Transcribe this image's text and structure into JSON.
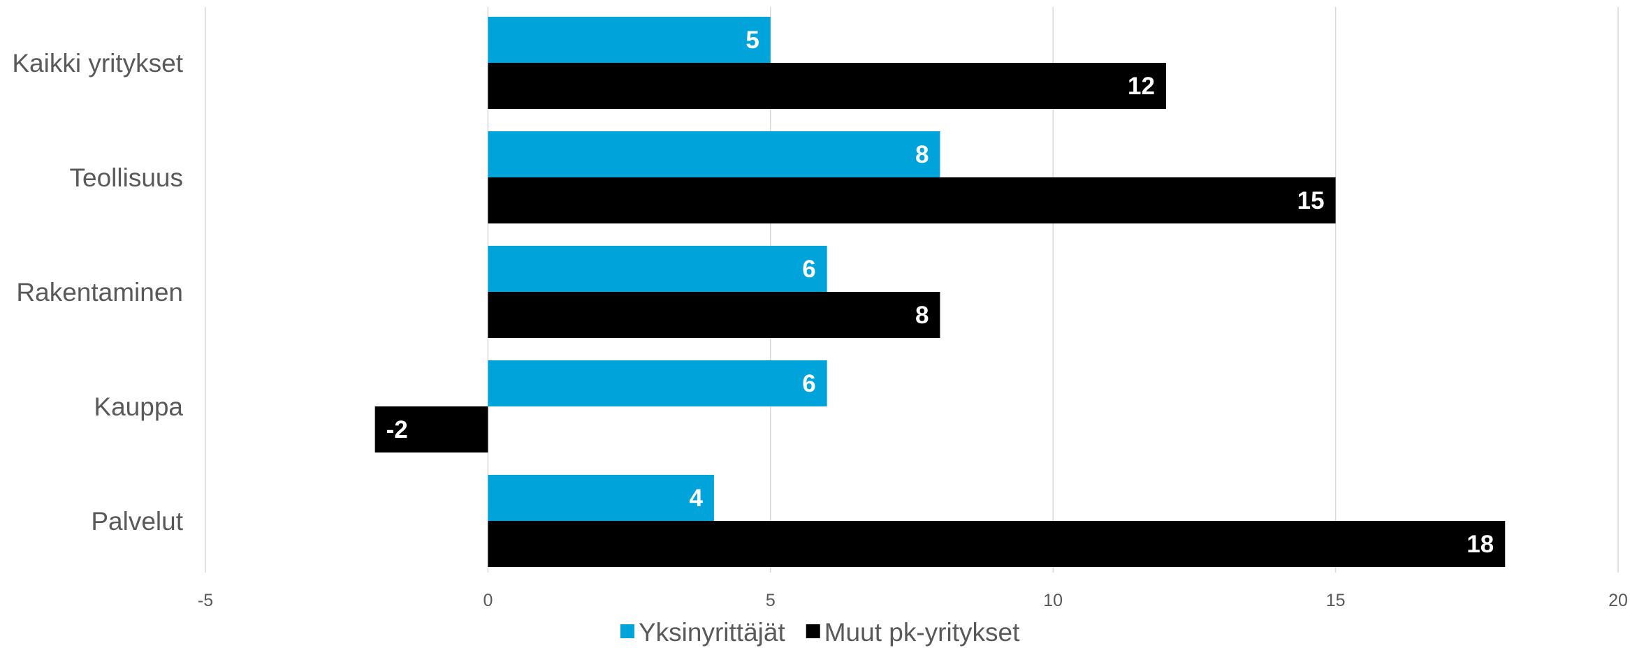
{
  "chart_data": {
    "type": "bar",
    "orientation": "horizontal",
    "categories": [
      "Kaikki yritykset",
      "Teollisuus",
      "Rakentaminen",
      "Kauppa",
      "Palvelut"
    ],
    "series": [
      {
        "name": "Yksinyrittäjät",
        "color": "#00A3DA",
        "values": [
          5,
          8,
          6,
          6,
          4
        ]
      },
      {
        "name": "Muut pk-yritykset",
        "color": "#000000",
        "values": [
          12,
          15,
          8,
          -2,
          18
        ]
      }
    ],
    "xlim": [
      -5,
      20
    ],
    "x_ticks": [
      "-5",
      "0",
      "5",
      "10",
      "15",
      "20"
    ],
    "grid": true,
    "grid_color": "#D9D9D9",
    "legend_position": "bottom",
    "data_labels": true,
    "title": "",
    "xlabel": "",
    "ylabel": ""
  }
}
